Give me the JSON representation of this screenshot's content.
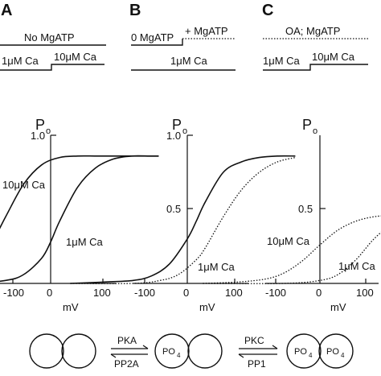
{
  "panels": {
    "A": {
      "letter": "A",
      "top_protocol": "No MgATP",
      "bottom_left": "1μM Ca",
      "bottom_right": "10μM Ca",
      "y_max_label": "1.0",
      "annot_left": "10μM Ca",
      "annot_right": "1μM Ca"
    },
    "B": {
      "letter": "B",
      "top_left": "0 MgATP",
      "top_right": "+ MgATP",
      "bottom": "1μM Ca",
      "y_max_label": "1.0",
      "y_mid_label": "0.5",
      "annot": "1μM Ca"
    },
    "C": {
      "letter": "C",
      "top_protocol": "OA; MgATP",
      "bottom_left": "1μM Ca",
      "bottom_right": "10μM Ca",
      "y_mid_label": "0.5",
      "annot_left": "10μM Ca",
      "annot_right": "1μM Ca"
    }
  },
  "axes": {
    "y_title": "P",
    "y_title_sub": "o",
    "x_title": "mV",
    "x_ticks": [
      "-100",
      "0",
      "100"
    ]
  },
  "scheme": {
    "arrow1_top": "PKA",
    "arrow1_bottom": "PP2A",
    "arrow2_top": "PKC",
    "arrow2_bottom": "PP1",
    "po4_main": "PO",
    "po4_sub": "4"
  },
  "chart_data": [
    {
      "panel": "A",
      "type": "line",
      "xlabel": "mV",
      "ylabel": "Po",
      "xlim": [
        -130,
        120
      ],
      "ylim": [
        0,
        1.0
      ],
      "series": [
        {
          "name": "10μM Ca",
          "style": "solid",
          "x": [
            -130,
            -110,
            -90,
            -70,
            -50,
            -30,
            -10,
            10,
            30,
            50,
            70,
            90,
            110,
            120
          ],
          "y": [
            0.01,
            0.03,
            0.08,
            0.22,
            0.45,
            0.67,
            0.8,
            0.85,
            0.86,
            0.86,
            0.86,
            0.86,
            0.86,
            0.86
          ]
        },
        {
          "name": "1μM Ca",
          "style": "solid",
          "x": [
            -130,
            -90,
            -50,
            -30,
            -10,
            0,
            10,
            30,
            50,
            70,
            90,
            110,
            120
          ],
          "y": [
            0.0,
            0.0,
            0.02,
            0.06,
            0.17,
            0.28,
            0.42,
            0.65,
            0.78,
            0.84,
            0.86,
            0.86,
            0.86
          ]
        }
      ]
    },
    {
      "panel": "B",
      "type": "line",
      "xlabel": "mV",
      "ylabel": "Po",
      "xlim": [
        -130,
        120
      ],
      "ylim": [
        0,
        1.0
      ],
      "series": [
        {
          "name": "0 MgATP",
          "style": "solid",
          "x": [
            -130,
            -90,
            -60,
            -40,
            -20,
            0,
            10,
            20,
            40,
            60,
            80,
            100,
            120
          ],
          "y": [
            0.0,
            0.01,
            0.02,
            0.05,
            0.13,
            0.3,
            0.42,
            0.55,
            0.75,
            0.82,
            0.85,
            0.86,
            0.86
          ]
        },
        {
          "name": "+ MgATP",
          "style": "dotted",
          "x": [
            -130,
            -60,
            -30,
            -10,
            10,
            20,
            40,
            60,
            80,
            100,
            120
          ],
          "y": [
            0.0,
            0.0,
            0.02,
            0.06,
            0.16,
            0.24,
            0.45,
            0.63,
            0.75,
            0.82,
            0.85
          ]
        }
      ]
    },
    {
      "panel": "C",
      "type": "line",
      "xlabel": "mV",
      "ylabel": "Po",
      "xlim": [
        -130,
        120
      ],
      "ylim": [
        0,
        1.0
      ],
      "series": [
        {
          "name": "10μM Ca",
          "style": "dotted",
          "x": [
            -130,
            -90,
            -60,
            -40,
            -20,
            0,
            20,
            40,
            60,
            80,
            100,
            120
          ],
          "y": [
            0.0,
            0.01,
            0.03,
            0.07,
            0.15,
            0.26,
            0.36,
            0.42,
            0.45,
            0.46,
            0.47,
            0.47
          ]
        },
        {
          "name": "1μM Ca",
          "style": "dotted",
          "x": [
            -130,
            -40,
            0,
            20,
            40,
            60,
            80,
            100,
            120
          ],
          "y": [
            0.0,
            0.0,
            0.02,
            0.06,
            0.16,
            0.3,
            0.4,
            0.45,
            0.47
          ]
        }
      ]
    }
  ]
}
